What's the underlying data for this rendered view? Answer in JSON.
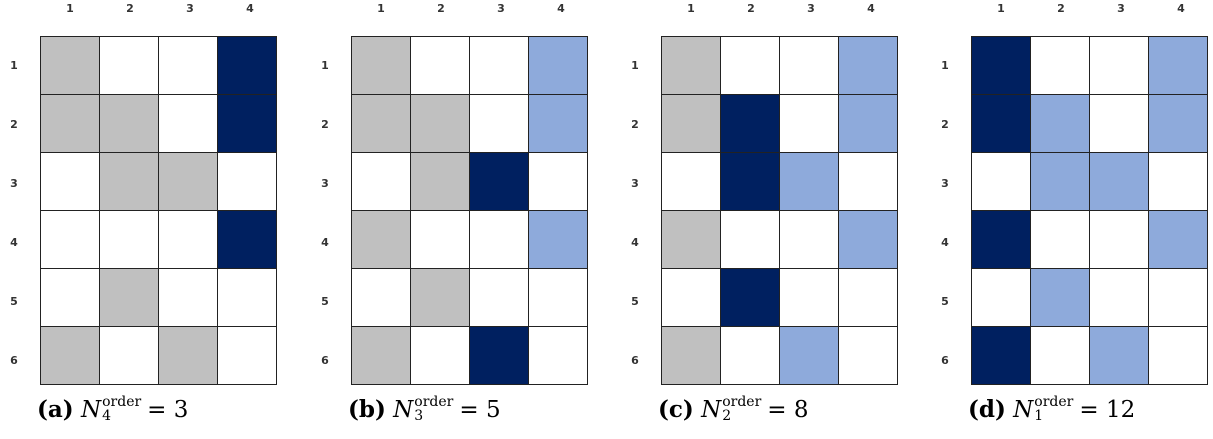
{
  "colors": {
    "white": "#ffffff",
    "gray": "#c0c0c0",
    "light_blue": "#8eaadb",
    "dark_blue": "#002060"
  },
  "column_labels": [
    "1",
    "2",
    "3",
    "4"
  ],
  "row_labels": [
    "1",
    "2",
    "3",
    "4",
    "5",
    "6"
  ],
  "panels": [
    {
      "label": "(a)",
      "symbol": "N",
      "superscript": "order",
      "subscript": "4",
      "equation_rest": "= 3",
      "cells": [
        [
          1,
          0,
          0,
          3
        ],
        [
          1,
          1,
          0,
          3
        ],
        [
          0,
          1,
          1,
          0
        ],
        [
          0,
          0,
          0,
          3
        ],
        [
          0,
          1,
          0,
          0
        ],
        [
          1,
          0,
          1,
          0
        ]
      ]
    },
    {
      "label": "(b)",
      "symbol": "N",
      "superscript": "order",
      "subscript": "3",
      "equation_rest": "= 5",
      "cells": [
        [
          1,
          0,
          0,
          2
        ],
        [
          1,
          1,
          0,
          2
        ],
        [
          0,
          1,
          3,
          0
        ],
        [
          1,
          0,
          0,
          2
        ],
        [
          0,
          1,
          0,
          0
        ],
        [
          1,
          0,
          3,
          0
        ]
      ]
    },
    {
      "label": "(c)",
      "symbol": "N",
      "superscript": "order",
      "subscript": "2",
      "equation_rest": "= 8",
      "cells": [
        [
          1,
          0,
          0,
          2
        ],
        [
          1,
          3,
          0,
          2
        ],
        [
          0,
          3,
          2,
          0
        ],
        [
          1,
          0,
          0,
          2
        ],
        [
          0,
          3,
          0,
          0
        ],
        [
          1,
          0,
          2,
          0
        ]
      ]
    },
    {
      "label": "(d)",
      "symbol": "N",
      "superscript": "order",
      "subscript": "1",
      "equation_rest": "= 12",
      "cells": [
        [
          3,
          0,
          0,
          2
        ],
        [
          3,
          2,
          0,
          2
        ],
        [
          0,
          2,
          2,
          0
        ],
        [
          3,
          0,
          0,
          2
        ],
        [
          0,
          2,
          0,
          0
        ],
        [
          3,
          0,
          2,
          0
        ]
      ]
    }
  ]
}
